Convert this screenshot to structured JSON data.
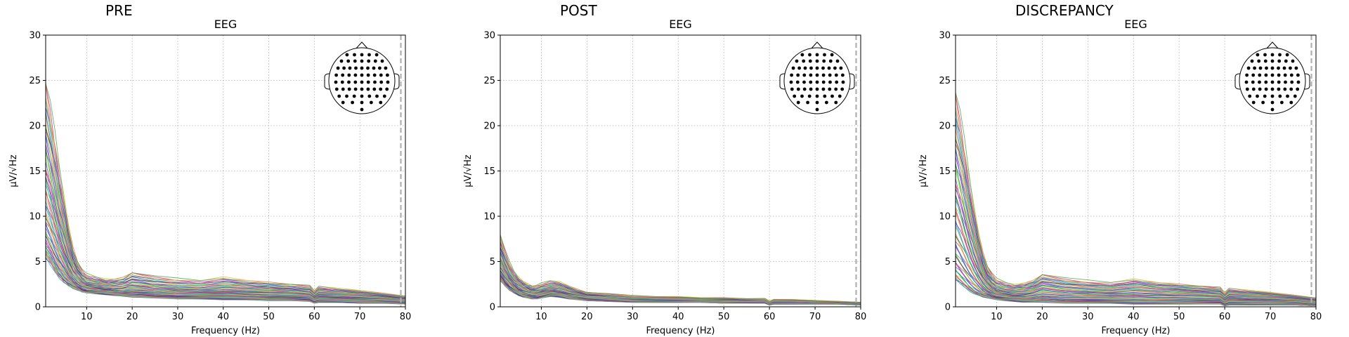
{
  "chart_data": [
    {
      "type": "line",
      "panel_title": "PRE",
      "title": "EEG",
      "xlabel": "Frequency (Hz)",
      "ylabel": "µV/√Hz",
      "xlim": [
        1,
        80
      ],
      "ylim": [
        0,
        30
      ],
      "xticks": [
        10,
        20,
        30,
        40,
        50,
        60,
        70,
        80
      ],
      "yticks": [
        0,
        5,
        10,
        15,
        20,
        25,
        30
      ],
      "grid": true,
      "vline_x": 79,
      "legend": "head-inset-top-right",
      "series_count": 60,
      "x": [
        1,
        2,
        3,
        4,
        5,
        6,
        7,
        8,
        9,
        10,
        12,
        14,
        16,
        18,
        20,
        25,
        30,
        35,
        40,
        45,
        50,
        55,
        59,
        60,
        61,
        65,
        70,
        75,
        80
      ],
      "envelope": {
        "highest_y": [
          25.0,
          22.0,
          18.5,
          15.0,
          12.0,
          9.0,
          6.5,
          5.0,
          4.0,
          3.5,
          3.2,
          3.0,
          3.0,
          3.2,
          3.8,
          3.3,
          3.0,
          2.8,
          3.2,
          2.9,
          2.7,
          2.5,
          2.3,
          1.7,
          2.2,
          2.0,
          1.8,
          1.5,
          1.2
        ],
        "lowest_y": [
          5.5,
          4.8,
          4.0,
          3.3,
          2.8,
          2.4,
          2.1,
          1.9,
          1.7,
          1.6,
          1.5,
          1.4,
          1.3,
          1.2,
          1.1,
          1.0,
          0.9,
          0.9,
          0.8,
          0.8,
          0.7,
          0.7,
          0.6,
          0.4,
          0.5,
          0.5,
          0.4,
          0.4,
          0.3
        ]
      }
    },
    {
      "type": "line",
      "panel_title": "POST",
      "title": "EEG",
      "xlabel": "Frequency (Hz)",
      "ylabel": "µV/√Hz",
      "xlim": [
        1,
        80
      ],
      "ylim": [
        0,
        30
      ],
      "xticks": [
        10,
        20,
        30,
        40,
        50,
        60,
        70,
        80
      ],
      "yticks": [
        0,
        5,
        10,
        15,
        20,
        25,
        30
      ],
      "grid": true,
      "vline_x": 79,
      "legend": "head-inset-top-right",
      "series_count": 60,
      "x": [
        1,
        2,
        3,
        4,
        5,
        6,
        7,
        8,
        9,
        10,
        12,
        14,
        16,
        18,
        20,
        25,
        30,
        35,
        40,
        45,
        50,
        55,
        59,
        60,
        61,
        65,
        70,
        75,
        80
      ],
      "envelope": {
        "highest_y": [
          8.0,
          6.2,
          4.8,
          3.8,
          3.2,
          2.8,
          2.5,
          2.3,
          2.3,
          2.5,
          2.8,
          2.7,
          2.3,
          1.9,
          1.6,
          1.4,
          1.2,
          1.1,
          1.1,
          1.0,
          1.0,
          0.9,
          0.9,
          0.6,
          0.8,
          0.8,
          0.7,
          0.6,
          0.5
        ],
        "lowest_y": [
          3.0,
          2.4,
          1.9,
          1.6,
          1.3,
          1.1,
          1.0,
          0.9,
          0.9,
          1.0,
          1.2,
          1.1,
          0.9,
          0.8,
          0.7,
          0.6,
          0.5,
          0.5,
          0.5,
          0.5,
          0.4,
          0.4,
          0.4,
          0.2,
          0.3,
          0.3,
          0.3,
          0.3,
          0.2
        ]
      }
    },
    {
      "type": "line",
      "panel_title": "DISCREPANCY",
      "title": "EEG",
      "xlabel": "Frequency (Hz)",
      "ylabel": "µV/√Hz",
      "xlim": [
        1,
        80
      ],
      "ylim": [
        0,
        30
      ],
      "xticks": [
        10,
        20,
        30,
        40,
        50,
        60,
        70,
        80
      ],
      "yticks": [
        0,
        5,
        10,
        15,
        20,
        25,
        30
      ],
      "grid": true,
      "vline_x": 79,
      "legend": "head-inset-top-right",
      "series_count": 60,
      "x": [
        1,
        2,
        3,
        4,
        5,
        6,
        7,
        8,
        9,
        10,
        12,
        14,
        16,
        18,
        20,
        25,
        30,
        35,
        40,
        45,
        50,
        55,
        59,
        60,
        61,
        65,
        70,
        75,
        80
      ],
      "envelope": {
        "highest_y": [
          24.0,
          21.0,
          17.5,
          14.0,
          11.0,
          8.3,
          6.0,
          4.5,
          3.6,
          3.0,
          2.6,
          2.4,
          2.6,
          2.9,
          3.6,
          3.1,
          2.8,
          2.6,
          3.0,
          2.7,
          2.5,
          2.3,
          2.1,
          1.5,
          2.0,
          1.8,
          1.6,
          1.3,
          1.0
        ],
        "lowest_y": [
          3.0,
          2.6,
          2.2,
          1.8,
          1.5,
          1.3,
          1.1,
          1.0,
          0.9,
          0.8,
          0.7,
          0.6,
          0.5,
          0.5,
          0.5,
          0.4,
          0.4,
          0.4,
          0.3,
          0.3,
          0.3,
          0.3,
          0.3,
          0.1,
          0.2,
          0.2,
          0.2,
          0.2,
          0.1
        ]
      }
    }
  ],
  "styles": {
    "grid_color": "#b0b0b0",
    "vline_color": "#b0b0b0",
    "axes_color": "#000000",
    "channel_palette": [
      "#7fff5c",
      "#3fd16a",
      "#1e9a7c",
      "#3ea6c9",
      "#6a8fe0",
      "#3a3fb0",
      "#6a3fd0",
      "#a84fd8",
      "#c0308f",
      "#e0406a",
      "#f07050",
      "#e8a040",
      "#c8c840",
      "#90e040",
      "#106040",
      "#302060"
    ]
  }
}
